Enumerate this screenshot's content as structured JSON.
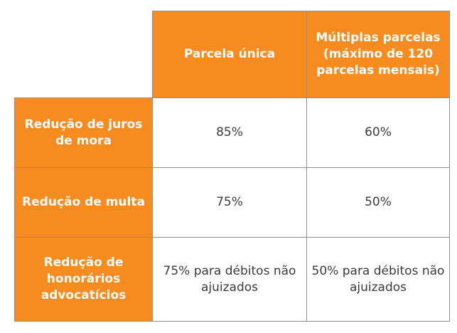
{
  "table": {
    "columns": [
      "Parcela única",
      "Múltiplas parcelas (máximo de 120 parcelas mensais)"
    ],
    "rows": [
      {
        "label": "Redução de juros de mora",
        "values": [
          "85%",
          "60%"
        ]
      },
      {
        "label": "Redução de multa",
        "values": [
          "75%",
          "50%"
        ]
      },
      {
        "label": "Redução de honorários advocatícios",
        "values": [
          "75% para débitos não ajuizados",
          "50% para débitos não ajuizados"
        ]
      }
    ]
  },
  "colors": {
    "header_bg": "#f68b1f",
    "header_text": "#ffffff",
    "cell_text": "#3b3b3b",
    "border": "#8f8f8f"
  }
}
